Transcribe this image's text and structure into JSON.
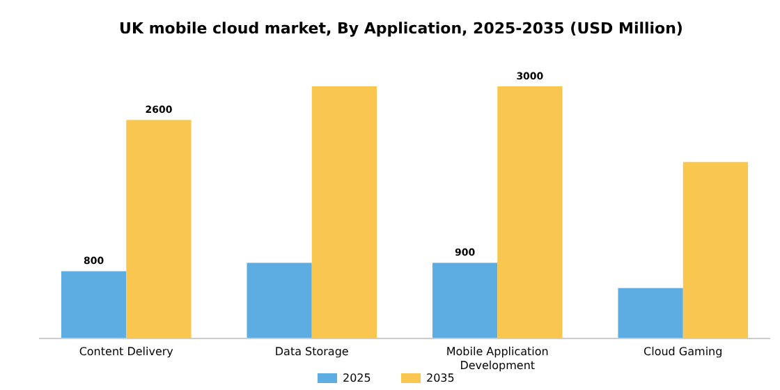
{
  "chart_data": {
    "type": "bar",
    "title": "UK mobile cloud market, By Application, 2025-2035 (USD Million)",
    "categories": [
      "Content Delivery",
      "Data Storage",
      "Mobile Application Development",
      "Cloud Gaming"
    ],
    "series": [
      {
        "name": "2025",
        "color": "#5dade2",
        "values": [
          800,
          900,
          900,
          600
        ],
        "value_labels": [
          "800",
          null,
          "900",
          null
        ]
      },
      {
        "name": "2035",
        "color": "#f9c74f",
        "values": [
          2600,
          3000,
          3000,
          2100
        ],
        "value_labels": [
          "2600",
          null,
          "3000",
          null
        ]
      }
    ],
    "legend": "bottom",
    "grid": false
  }
}
